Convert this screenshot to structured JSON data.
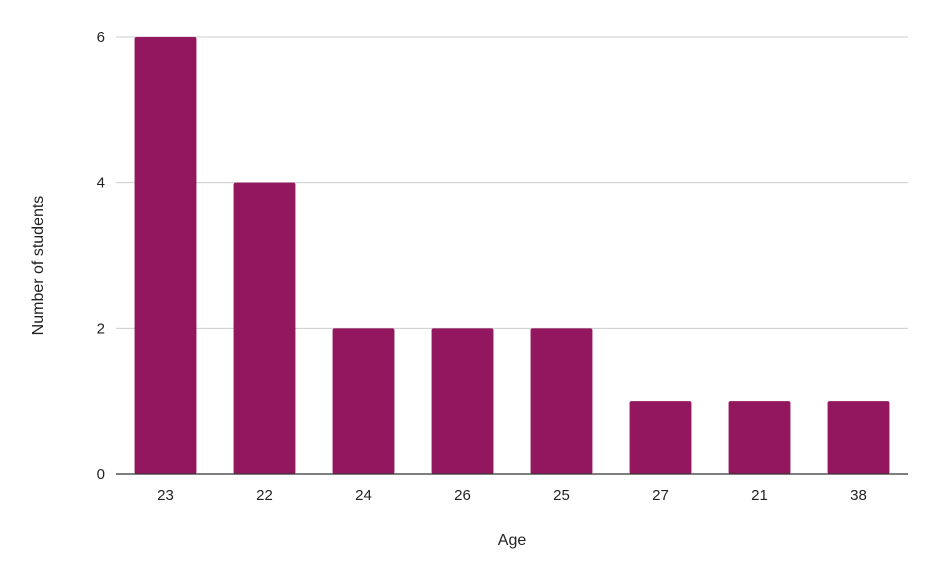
{
  "chart_data": {
    "type": "bar",
    "title": "",
    "xlabel": "Age",
    "ylabel": "Number of students",
    "categories": [
      "23",
      "22",
      "24",
      "26",
      "25",
      "27",
      "21",
      "38"
    ],
    "values": [
      6,
      4,
      2,
      2,
      2,
      1,
      1,
      1
    ],
    "ylim": [
      0,
      6
    ],
    "yticks": [
      0,
      2,
      4,
      6
    ],
    "grid": true,
    "legend": "none",
    "bar_color": "#93175f"
  }
}
